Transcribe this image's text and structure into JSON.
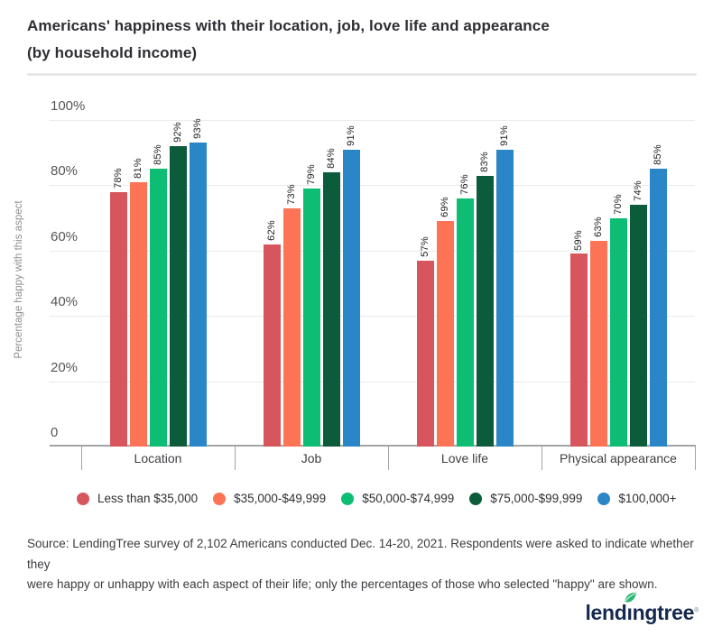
{
  "page": {
    "title_line1": "Americans' happiness with their location, job, love life and appearance",
    "title_line2": "(by household income)",
    "source_lines": [
      "Source: LendingTree survey of 2,102 Americans conducted Dec. 14-20, 2021. Respondents were asked to indicate whether they",
      "were happy or unhappy with each aspect of their life; only the percentages of those who selected \"happy\" are shown."
    ],
    "logo": {
      "text_before": "lend",
      "text_i": "ı",
      "text_after": "ngtree",
      "reg_mark": "®",
      "navy": "#14294e",
      "leaf_green": "#2bb673"
    }
  },
  "chart_data": {
    "type": "bar",
    "title": "Americans' happiness with their location, job, love life and appearance (by household income)",
    "categories": [
      "Location",
      "Job",
      "Love life",
      "Physical appearance"
    ],
    "series": [
      {
        "name": "Less than $35,000",
        "color": "#d7555c",
        "values": [
          78,
          62,
          57,
          59
        ]
      },
      {
        "name": "$35,000-$49,999",
        "color": "#fc7355",
        "values": [
          81,
          73,
          69,
          63
        ]
      },
      {
        "name": "$50,000-$74,999",
        "color": "#0ebd74",
        "values": [
          85,
          79,
          76,
          70
        ]
      },
      {
        "name": "$75,000-$99,999",
        "color": "#0c5c3c",
        "values": [
          92,
          84,
          83,
          74
        ]
      },
      {
        "name": "$100,000+",
        "color": "#2a86c7",
        "values": [
          93,
          91,
          91,
          85
        ]
      }
    ],
    "xlabel": "",
    "ylabel": "Percentage happy with this aspect",
    "ylim": [
      0,
      100
    ],
    "yticks": [
      {
        "label": "100%",
        "value": 100
      },
      {
        "label": "80%",
        "value": 80
      },
      {
        "label": "60%",
        "value": 60
      },
      {
        "label": "40%",
        "value": 40
      },
      {
        "label": "20%",
        "value": 20
      },
      {
        "label": "0",
        "value": 0
      }
    ],
    "grid": true,
    "legend_position": "bottom",
    "value_labels": "rotated-percent-above-bars"
  }
}
